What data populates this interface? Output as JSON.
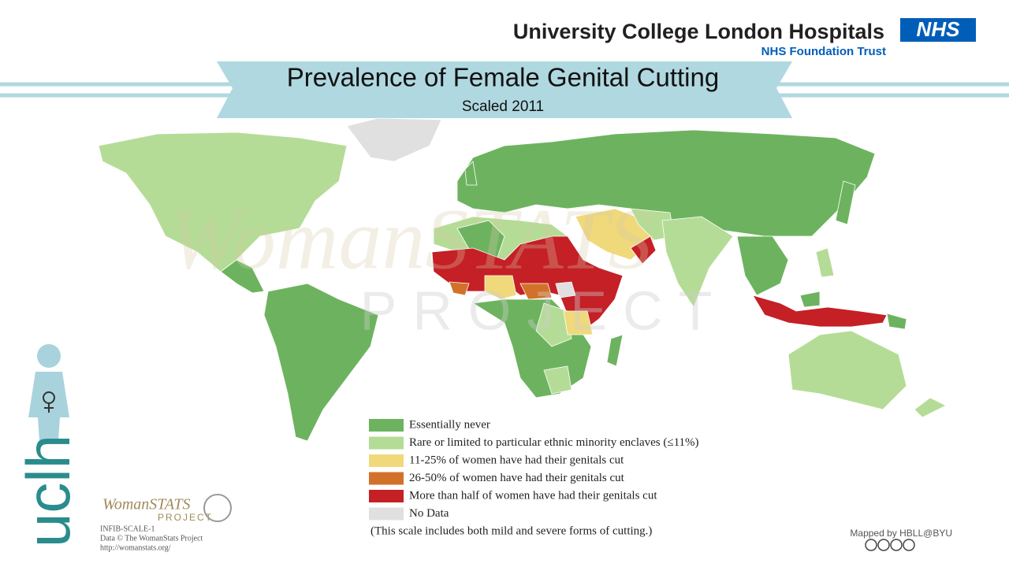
{
  "header": {
    "organization": "University College London Hospitals",
    "nhs_logo": "NHS",
    "trust": "NHS Foundation Trust"
  },
  "title": "Prevalence of Female Genital Cutting",
  "subtitle": "Scaled 2011",
  "watermark": {
    "name": "WomanSTATS",
    "sub": "PROJECT"
  },
  "legend": {
    "items": [
      {
        "label": "Essentially never",
        "color": "#6db35f"
      },
      {
        "label": "Rare or limited to particular ethnic minority enclaves (≤11%)",
        "color": "#b5dc96"
      },
      {
        "label": "11-25% of women have had their genitals cut",
        "color": "#f0d97a"
      },
      {
        "label": "26-50% of women have had their genitals cut",
        "color": "#d2722a"
      },
      {
        "label": "More than half of women have had their genitals cut",
        "color": "#c42026"
      },
      {
        "label": "No Data",
        "color": "#e0e0e0"
      }
    ],
    "note": "(This scale includes both mild and severe forms of cutting.)"
  },
  "credits": {
    "logo": "WomanSTATS",
    "logo_sub": "PROJECT",
    "code": "INFIB-SCALE-1",
    "data": "Data © The WomanStats Project",
    "url": "http://womanstats.org/",
    "mapped_by": "Mapped by HBLL@BYU"
  },
  "brand": "uclh"
}
